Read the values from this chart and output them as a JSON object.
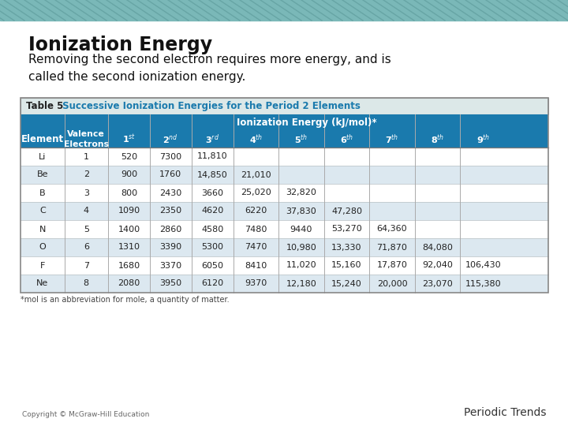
{
  "title": "Ionization Energy",
  "subtitle": "Removing the second electron requires more energy, and is\ncalled the second ionization energy.",
  "rows": [
    [
      "Li",
      "1",
      "520",
      "7300",
      "11,810",
      "",
      "",
      "",
      "",
      "",
      ""
    ],
    [
      "Be",
      "2",
      "900",
      "1760",
      "14,850",
      "21,010",
      "",
      "",
      "",
      "",
      ""
    ],
    [
      "B",
      "3",
      "800",
      "2430",
      "3660",
      "25,020",
      "32,820",
      "",
      "",
      "",
      ""
    ],
    [
      "C",
      "4",
      "1090",
      "2350",
      "4620",
      "6220",
      "37,830",
      "47,280",
      "",
      "",
      ""
    ],
    [
      "N",
      "5",
      "1400",
      "2860",
      "4580",
      "7480",
      "9440",
      "53,270",
      "64,360",
      "",
      ""
    ],
    [
      "O",
      "6",
      "1310",
      "3390",
      "5300",
      "7470",
      "10,980",
      "13,330",
      "71,870",
      "84,080",
      ""
    ],
    [
      "F",
      "7",
      "1680",
      "3370",
      "6050",
      "8410",
      "11,020",
      "15,160",
      "17,870",
      "92,040",
      "106,430"
    ],
    [
      "Ne",
      "8",
      "2080",
      "3950",
      "6120",
      "9370",
      "12,180",
      "15,240",
      "20,000",
      "23,070",
      "115,380"
    ]
  ],
  "footnote": "*mol is an abbreviation for mole, a quantity of matter.",
  "footer_left": "Copyright © McGraw-Hill Education",
  "footer_right": "Periodic Trends",
  "bg_color": "#ffffff",
  "title_bg_color": "#dce8e8",
  "blue_header_color": "#1a7aad",
  "row_colors": [
    "#ffffff",
    "#dce8f0"
  ]
}
